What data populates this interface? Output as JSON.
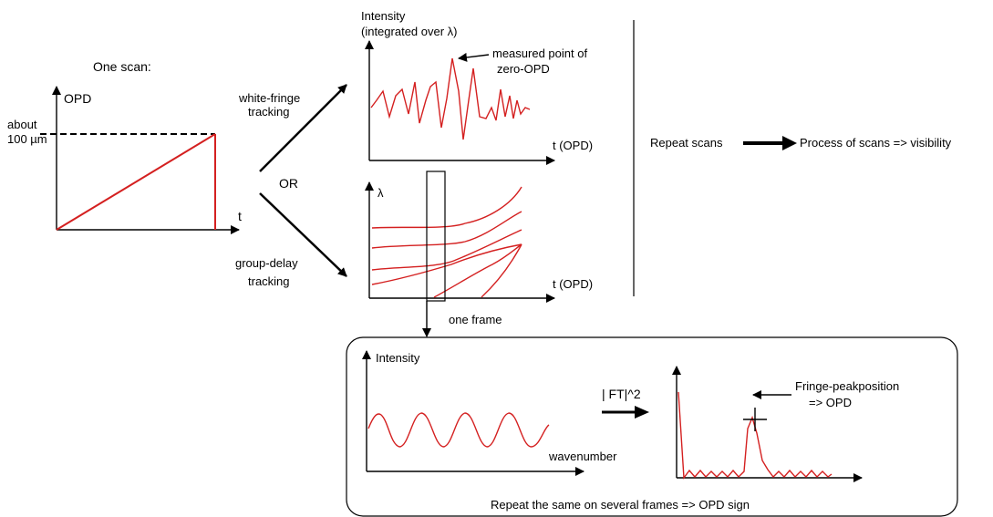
{
  "scan_panel": {
    "title": "One scan:",
    "y_axis": "OPD",
    "x_axis": "t",
    "max_label_line1": "about",
    "max_label_line2": "100 µm"
  },
  "branches": {
    "top_line1": "white-fringe",
    "top_line2": "tracking",
    "or": "OR",
    "bottom_line1": "group-delay",
    "bottom_line2": "tracking"
  },
  "white_fringe_chart": {
    "y_axis_line1": "Intensity",
    "y_axis_line2": "(integrated over λ)",
    "x_axis": "t (OPD)",
    "annotation_line1": "measured point of",
    "annotation_line2": "zero-OPD"
  },
  "group_delay_chart": {
    "y_axis": "λ",
    "x_axis": "t (OPD)",
    "frame_label": "one frame"
  },
  "right_flow": {
    "repeat": "Repeat scans",
    "process": "Process of scans => visibility"
  },
  "frame_box": {
    "intensity_label": "Intensity",
    "wavenumber_label": "wavenumber",
    "transform_label": "| FT|^2",
    "peak_line1": "Fringe-peakposition",
    "peak_line2": "=> OPD",
    "footer": "Repeat the same on several frames => OPD sign"
  }
}
